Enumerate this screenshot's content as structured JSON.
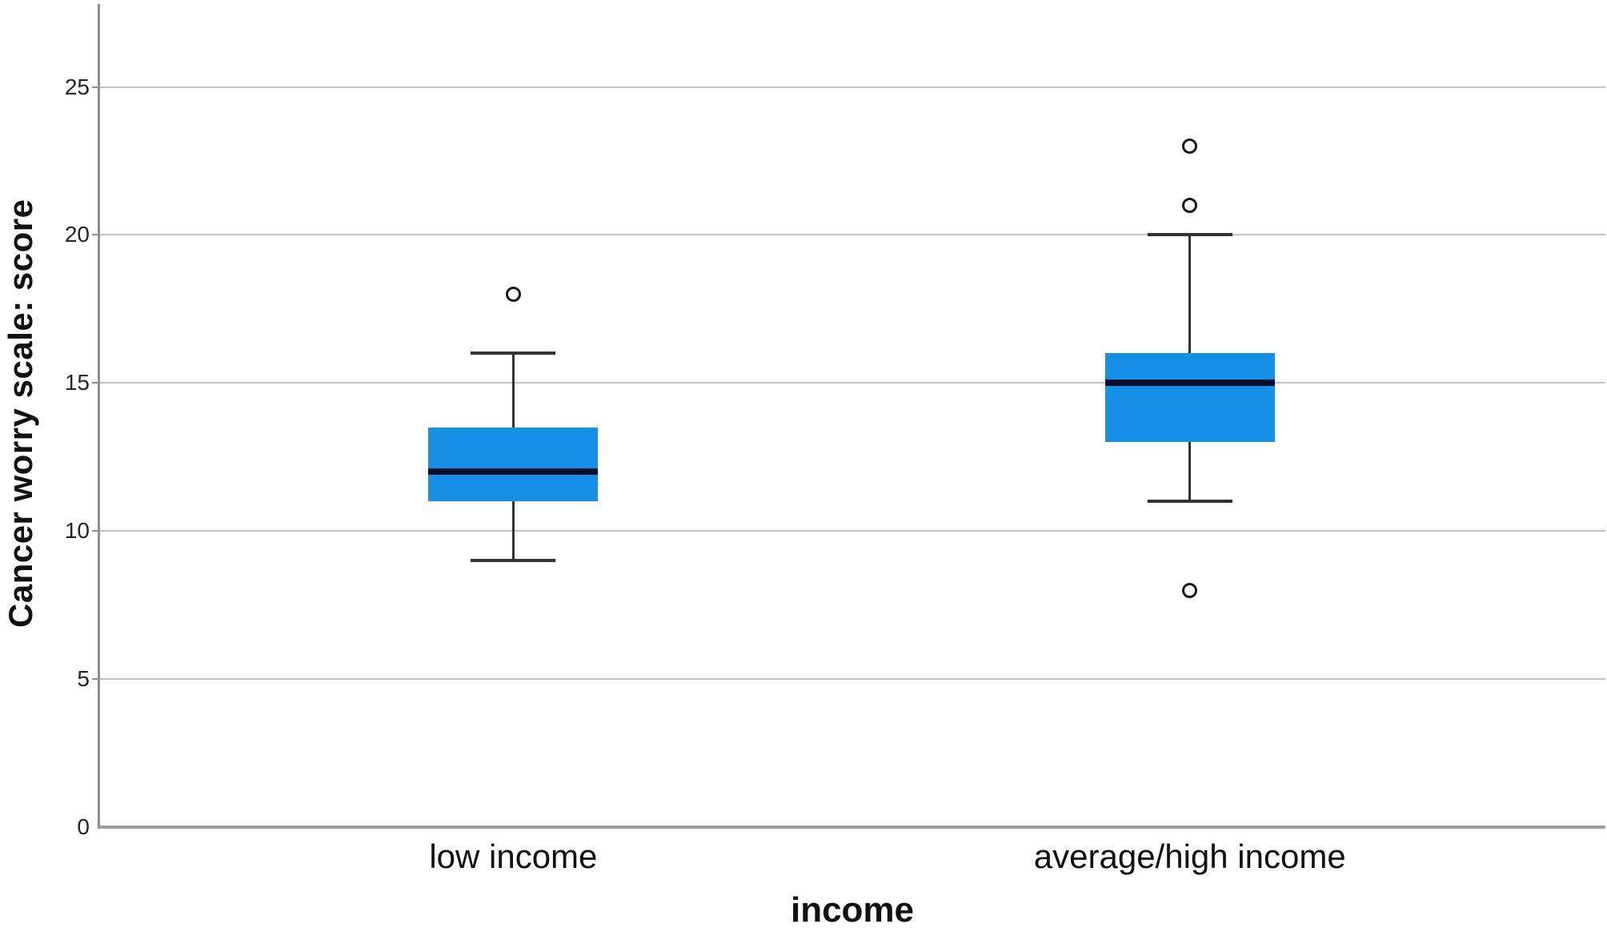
{
  "chart_data": {
    "type": "boxplot",
    "xlabel": "income",
    "ylabel": "Cancer worry scale: score",
    "ylim": [
      0,
      27.8
    ],
    "yticks": [
      0,
      5,
      10,
      15,
      20,
      25
    ],
    "grid": "horizontal-only, no top/right frame",
    "categories": [
      "low income",
      "average/high income"
    ],
    "series": [
      {
        "name": "low income",
        "whisker_low": 9,
        "q1": 11,
        "median": 12,
        "q3": 13.5,
        "whisker_high": 16,
        "outliers": [
          18
        ]
      },
      {
        "name": "average/high income",
        "whisker_low": 11,
        "q1": 13,
        "median": 15,
        "q3": 16,
        "whisker_high": 20,
        "outliers": [
          8,
          21,
          23
        ]
      }
    ],
    "colors": {
      "box_fill": "#1590E6",
      "median": "#02102b",
      "whisker": "#333333",
      "outlier_stroke": "#1a1a1a",
      "gridline": "#c2c2c2",
      "axis": "#8f8f8f"
    }
  }
}
